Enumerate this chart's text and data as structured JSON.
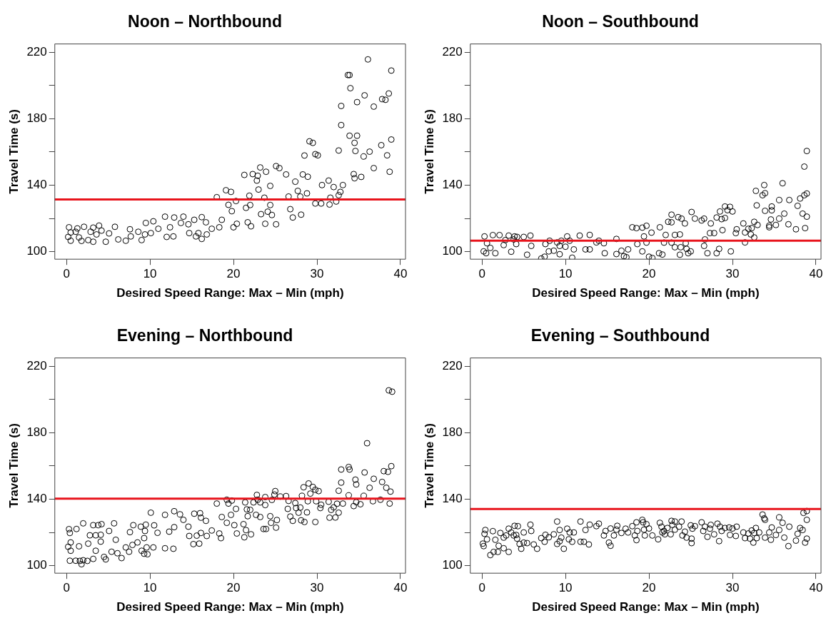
{
  "chart_data": [
    {
      "type": "scatter",
      "title": "Noon – Northbound",
      "xlabel": "Desired Speed Range: Max – Min (mph)",
      "ylabel": "Travel Time (s)",
      "xlim": [
        -1.4,
        40.6
      ],
      "ylim": [
        95.5,
        225
      ],
      "xticks": [
        0,
        10,
        20,
        30,
        40
      ],
      "yticks": [
        100,
        {
          "value": 120,
          "label": null
        },
        140,
        {
          "value": 160,
          "label": null
        },
        180,
        {
          "value": 200,
          "label": null
        },
        220
      ],
      "grid": false,
      "marker": "circle",
      "ref_lines": [
        {
          "axis": "y",
          "value": 131.4,
          "color": "#e8141c"
        }
      ],
      "series": [
        {
          "color": "#000000",
          "x": [
            0.2,
            0.3,
            0.5,
            0.5,
            1.1,
            1.3,
            1.5,
            1.8,
            2.1,
            2.6,
            2.9,
            3.2,
            3.2,
            3.6,
            3.9,
            4.2,
            4.7,
            5.1,
            5.8,
            6.2,
            7.1,
            7.6,
            7.7,
            8.6,
            9,
            9.4,
            9.5,
            10.1,
            10.4,
            11,
            11.8,
            12,
            12.4,
            12.8,
            12.9,
            13.7,
            14,
            14.6,
            14.7,
            15.3,
            15.5,
            15.8,
            16.2,
            16.2,
            16.7,
            16.8,
            17.4,
            18,
            18.3,
            18.6,
            19.1,
            19.4,
            19.7,
            19.8,
            20,
            20.3,
            20.4,
            21.3,
            21.5,
            21.7,
            21.9,
            22,
            22.1,
            22.3,
            22.8,
            22.9,
            23,
            23.2,
            23.3,
            23.7,
            23.8,
            23.9,
            24.1,
            24.4,
            24.4,
            24.6,
            25.1,
            25.1,
            25.5,
            26.3,
            26.6,
            26.8,
            27.1,
            27.4,
            27.7,
            28,
            28.1,
            28.3,
            28.5,
            28.8,
            28.9,
            29.1,
            29.5,
            29.8,
            29.8,
            30.1,
            30.5,
            30.6,
            31.4,
            31.5,
            31.6,
            32,
            32.3,
            32.6,
            32.6,
            32.8,
            32.9,
            32.9,
            33.1,
            33.7,
            33.9,
            33.9,
            34,
            34.4,
            34.5,
            34.5,
            34.6,
            34.8,
            34.8,
            35.3,
            35.6,
            35.7,
            36.1,
            36.3,
            36.8,
            36.8,
            37.7,
            37.8,
            38.2,
            38.4,
            38.6,
            38.7,
            38.9,
            38.9
          ],
          "values": [
            108.9,
            114.7,
            111.6,
            106.6,
            112,
            114,
            108.6,
            106.5,
            115,
            107,
            112,
            114.5,
            106,
            110.4,
            115.7,
            112.7,
            106,
            111,
            115,
            107.4,
            106.6,
            113.5,
            109.2,
            112,
            107,
            110.4,
            117.3,
            111.2,
            118.3,
            113.8,
            121.1,
            108.9,
            114.7,
            109.2,
            120.6,
            117.3,
            121.1,
            116.5,
            111.2,
            119.2,
            109.2,
            111.2,
            120.8,
            107.7,
            117.7,
            110.4,
            113.8,
            132.8,
            114.7,
            119.2,
            137,
            128.2,
            136,
            124.4,
            114.7,
            130.5,
            116.8,
            146.2,
            126.4,
            117.7,
            133.7,
            128.1,
            115.3,
            146.7,
            142.8,
            145.7,
            137.4,
            150.7,
            122.6,
            132.5,
            116.8,
            148.1,
            124.1,
            139.6,
            128.1,
            122.1,
            151.5,
            116.5,
            150.3,
            146.5,
            133.2,
            125.6,
            120.6,
            142.1,
            136.6,
            133.2,
            122.3,
            146.5,
            157.9,
            135.1,
            145.1,
            166.4,
            165.5,
            158.7,
            129,
            158,
            129,
            140.1,
            142.8,
            128.4,
            132.5,
            138.9,
            130.2,
            160.9,
            134,
            136,
            187.7,
            176.2,
            140.1,
            206.3,
            206.3,
            169.8,
            198.4,
            146.7,
            144.2,
            165.5,
            160.6,
            190,
            169.8,
            145,
            157.3,
            194.1,
            215.7,
            160.2,
            150.3,
            187.3,
            164.1,
            191.8,
            191.4,
            158,
            195.2,
            148.1,
            167.5,
            209
          ]
        }
      ]
    },
    {
      "type": "scatter",
      "title": "Noon – Southbound",
      "xlabel": "Desired Speed Range: Max – Min (mph)",
      "ylabel": "Travel Time (s)",
      "xlim": [
        -1.4,
        40.6
      ],
      "ylim": [
        95.5,
        225
      ],
      "xticks": [
        0,
        10,
        20,
        30,
        40
      ],
      "yticks": [
        100,
        {
          "value": 120,
          "label": null
        },
        140,
        {
          "value": 160,
          "label": null
        },
        180,
        {
          "value": 200,
          "label": null
        },
        220
      ],
      "grid": false,
      "marker": "circle",
      "ref_lines": [
        {
          "axis": "y",
          "value": 106.6,
          "color": "#e8141c"
        }
      ],
      "series": [
        {
          "color": "#000000",
          "x": [
            0.2,
            0.3,
            0.5,
            0.6,
            1,
            1.3,
            1.6,
            2.1,
            2.6,
            2.8,
            3.2,
            3.5,
            3.8,
            3.9,
            4.1,
            4.2,
            5,
            5.4,
            5.8,
            5.9,
            7.1,
            7.5,
            7.6,
            8,
            8.1,
            8.6,
            9,
            9.3,
            9.3,
            9.5,
            10,
            10.2,
            10.5,
            10.8,
            11,
            11.7,
            12.4,
            12.9,
            12.9,
            13.7,
            14,
            14.6,
            14.7,
            16.1,
            16.1,
            16.7,
            17,
            17.3,
            17.5,
            18,
            18.5,
            18.6,
            19.2,
            19.2,
            19.4,
            19.7,
            19.7,
            20,
            20.3,
            20.4,
            21.2,
            21.3,
            21.6,
            21.8,
            22,
            22.3,
            22.7,
            22.7,
            22.7,
            23.1,
            23.1,
            23.5,
            23.7,
            23.7,
            23.8,
            23.9,
            24.3,
            24.4,
            24.5,
            24.7,
            25,
            25.1,
            25.5,
            26.3,
            26.6,
            26.6,
            26.7,
            27,
            27.3,
            27.4,
            27.8,
            28.1,
            28.1,
            28.4,
            28.5,
            28.7,
            28.8,
            29.1,
            29.1,
            29.4,
            29.7,
            29.8,
            30,
            30.4,
            30.5,
            31.3,
            31.5,
            31.5,
            31.9,
            32.2,
            32.3,
            32.6,
            32.6,
            32.8,
            32.9,
            33,
            33.6,
            33.8,
            33.9,
            33.9,
            34.4,
            34.4,
            34.6,
            34.7,
            34.7,
            35.2,
            35.6,
            35.6,
            36,
            36.2,
            36.7,
            36.8,
            37.6,
            37.8,
            38.1,
            38.4,
            38.6,
            38.6,
            38.7,
            38.9,
            38.9,
            38.9
          ],
          "values": [
            100.2,
            109.2,
            99.1,
            105.1,
            102.3,
            110,
            99.1,
            110,
            104,
            107,
            109.7,
            100,
            107.4,
            109.2,
            104.6,
            108.9,
            108.9,
            98.2,
            109.7,
            103.5,
            95.9,
            97,
            104.6,
            100.2,
            106.6,
            100.6,
            105.6,
            98.5,
            103.5,
            106.6,
            103,
            109.2,
            106.6,
            96.4,
            101.4,
            109.7,
            101.4,
            101.4,
            110.1,
            105.6,
            106.6,
            105.1,
            99.1,
            98.6,
            107.7,
            100.6,
            97.3,
            96.7,
            101.4,
            114.7,
            114.2,
            104.6,
            114.5,
            100.2,
            109.2,
            105.5,
            115.6,
            97,
            111.5,
            96.2,
            99.1,
            114.7,
            98.3,
            105.5,
            110.1,
            118,
            117.7,
            122.3,
            105.5,
            110.1,
            102.7,
            120.8,
            98.2,
            110.4,
            102.7,
            119.9,
            117,
            105.1,
            101.7,
            99.1,
            100.2,
            123.9,
            119.9,
            118.8,
            119.9,
            103.5,
            107.4,
            99.1,
            111.2,
            117,
            111.2,
            120.6,
            99.1,
            101.7,
            124.2,
            119.6,
            113,
            127.2,
            120.3,
            125,
            127,
            100.2,
            124.2,
            111.2,
            113.5,
            117,
            105.6,
            111.6,
            113.8,
            110.4,
            114.2,
            118,
            108.6,
            136.6,
            127.9,
            116.1,
            134,
            140.1,
            135.2,
            124.6,
            115.7,
            114.7,
            119.4,
            124.9,
            127.2,
            116.1,
            119.9,
            131.1,
            141.2,
            122.9,
            116.5,
            131.1,
            113.5,
            127.6,
            132,
            122.9,
            151.2,
            134,
            114.2,
            121.1,
            135,
            160.6
          ]
        }
      ]
    },
    {
      "type": "scatter",
      "title": "Evening – Northbound",
      "xlabel": "Desired Speed Range: Max – Min (mph)",
      "ylabel": "Travel Time (s)",
      "xlim": [
        -1.4,
        40.6
      ],
      "ylim": [
        95.5,
        225
      ],
      "xticks": [
        0,
        10,
        20,
        30,
        40
      ],
      "yticks": [
        100,
        {
          "value": 120,
          "label": null
        },
        140,
        {
          "value": 160,
          "label": null
        },
        180,
        {
          "value": 200,
          "label": null
        },
        220
      ],
      "grid": false,
      "marker": "circle",
      "ref_lines": [
        {
          "axis": "y",
          "value": 140.3,
          "color": "#e8141c"
        }
      ],
      "series": [
        {
          "color": "#000000",
          "x": [
            0.2,
            0.3,
            0.4,
            0.4,
            0.5,
            0.5,
            1.1,
            1.2,
            1.5,
            1.6,
            1.8,
            2,
            2,
            2.5,
            2.6,
            2.8,
            3.2,
            3.2,
            3.5,
            3.5,
            3.8,
            4.1,
            4.1,
            4.2,
            4.5,
            4.7,
            5.1,
            5.4,
            5.7,
            5.9,
            6.1,
            6.6,
            7.1,
            7.5,
            7.6,
            7.9,
            8,
            8.5,
            8.9,
            9,
            9.3,
            9.3,
            9.4,
            9.5,
            9.6,
            9.7,
            10.1,
            10.4,
            10.5,
            10.9,
            11.8,
            11.8,
            12.3,
            12.8,
            12.9,
            12.9,
            13.6,
            14,
            14.6,
            14.7,
            15.2,
            15.3,
            15.6,
            15.9,
            16,
            16.1,
            16.1,
            16.7,
            16.8,
            17.4,
            18,
            18.3,
            18.5,
            18.6,
            19.2,
            19.2,
            19.4,
            19.7,
            19.8,
            20.1,
            20.3,
            20.4,
            21.2,
            21.3,
            21.4,
            21.5,
            21.6,
            21.7,
            22,
            22.1,
            22.4,
            22.7,
            22.8,
            22.9,
            23.2,
            23.2,
            23.6,
            23.8,
            23.8,
            23.9,
            24.4,
            24.5,
            24.6,
            24.9,
            25,
            25.1,
            25.2,
            25.6,
            26.3,
            26.5,
            26.6,
            26.8,
            27.1,
            27.4,
            27.5,
            27.8,
            28,
            28.1,
            28.2,
            28.4,
            28.5,
            28.8,
            28.9,
            29,
            29.2,
            29.5,
            29.8,
            29.8,
            29.9,
            30.2,
            30.4,
            30.5,
            31.4,
            31.5,
            31.7,
            32,
            32.2,
            32.4,
            32.6,
            32.6,
            32.9,
            32.9,
            33.1,
            33.8,
            33.8,
            33.9,
            34.4,
            34.6,
            34.7,
            34.7,
            35.2,
            35.6,
            35.7,
            36,
            36.3,
            36.7,
            36.8,
            37.6,
            37.8,
            38,
            38.3,
            38.5,
            38.6,
            38.7,
            38.8,
            38.9,
            39
          ],
          "values": [
            111.4,
            122,
            119.7,
            103,
            109,
            114,
            103,
            122.1,
            111.7,
            102.9,
            100.9,
            103.3,
            125.5,
            102.9,
            113.3,
            118.3,
            124.4,
            104.1,
            118.3,
            109,
            124.4,
            114.5,
            118.6,
            125,
            105.3,
            103.8,
            120.9,
            108.4,
            125.5,
            115.6,
            107.5,
            104.6,
            111,
            108.4,
            120.2,
            112.5,
            124.4,
            114,
            123.5,
            109,
            107.2,
            116.6,
            120.9,
            124.7,
            111,
            106.9,
            131.9,
            111,
            124.3,
            119.8,
            130.6,
            110.5,
            120.5,
            110.2,
            132.8,
            123.2,
            130.9,
            127.6,
            123.5,
            117.9,
            113,
            131.3,
            118.1,
            113.3,
            131.6,
            128.9,
            119.7,
            127,
            117.9,
            121.2,
            137.4,
            119.4,
            116.6,
            129.3,
            139.7,
            125.8,
            137.4,
            130.6,
            139.2,
            124.4,
            134.2,
            119.4,
            125,
            117.1,
            138.1,
            121.4,
            133.9,
            129.8,
            133.6,
            118.9,
            138.1,
            130.6,
            142.6,
            139.7,
            138.1,
            129.3,
            122.1,
            136.5,
            141.3,
            122.1,
            129.8,
            125.8,
            139.6,
            142.8,
            144.9,
            122.9,
            127.5,
            141.6,
            141.9,
            134.2,
            139,
            129.6,
            127,
            137.7,
            134.7,
            131.9,
            135,
            127.3,
            142,
            147.2,
            126.3,
            132.1,
            138.8,
            149.5,
            143.4,
            147.4,
            145.7,
            126.3,
            138.8,
            144.9,
            134.7,
            136.7,
            138.5,
            128.9,
            133.6,
            135.1,
            129,
            137.3,
            145.1,
            131.9,
            157.9,
            150,
            137.4,
            159.4,
            142.3,
            157.9,
            135.9,
            151.8,
            138.2,
            148.9,
            137,
            142,
            156.1,
            173.7,
            146.9,
            138.8,
            152.3,
            139.7,
            150.4,
            156.9,
            146.9,
            156.5,
            205.5,
            137.4,
            144.6,
            159.9,
            204.7
          ]
        }
      ]
    },
    {
      "type": "scatter",
      "title": "Evening – Southbound",
      "xlabel": "Desired Speed Range: Max – Min (mph)",
      "ylabel": "Travel Time (s)",
      "xlim": [
        -1.4,
        40.6
      ],
      "ylim": [
        95.5,
        225
      ],
      "xticks": [
        0,
        10,
        20,
        30,
        40
      ],
      "yticks": [
        100,
        {
          "value": 120,
          "label": null
        },
        140,
        {
          "value": 160,
          "label": null
        },
        180,
        {
          "value": 200,
          "label": null
        },
        220
      ],
      "grid": false,
      "marker": "circle",
      "ref_lines": [
        {
          "axis": "y",
          "value": 134.1,
          "color": "#e8141c"
        }
      ],
      "series": [
        {
          "color": "#000000",
          "x": [
            0.1,
            0.2,
            0.4,
            0.3,
            0.6,
            1,
            1.3,
            1.4,
            1.6,
            1.9,
            2,
            2.2,
            2.6,
            2.6,
            2.9,
            3.2,
            3.2,
            3.5,
            3.8,
            3.9,
            4.1,
            4.3,
            4.2,
            4.5,
            4.7,
            5,
            5,
            5.4,
            5.8,
            5.9,
            6.2,
            6.6,
            7.1,
            7.5,
            7.6,
            8,
            8.6,
            9,
            9,
            9.3,
            9.3,
            9.5,
            9.8,
            10.2,
            10.4,
            10.5,
            10.8,
            11,
            11.8,
            11.8,
            12.2,
            12.4,
            12.8,
            12.9,
            13.7,
            14,
            14.6,
            14.8,
            15.2,
            15.4,
            15.4,
            15.8,
            16.1,
            16.2,
            16.7,
            17.2,
            17.5,
            18,
            18.3,
            18.5,
            18.5,
            18.6,
            19.2,
            19.3,
            19.4,
            19.5,
            19.7,
            20,
            20.4,
            21.1,
            21.3,
            21.5,
            21.6,
            21.8,
            21.9,
            22.2,
            22.6,
            22.7,
            22.8,
            23.1,
            23.1,
            23.6,
            23.9,
            24,
            24.3,
            24.5,
            25,
            25.1,
            25.1,
            25.2,
            25.5,
            26.3,
            26.5,
            26.7,
            27,
            27.3,
            27.4,
            27.8,
            28.2,
            28.4,
            28.5,
            28.7,
            29.1,
            29.6,
            29.7,
            30,
            30.4,
            30.5,
            31.3,
            31.5,
            31.9,
            32.1,
            32.3,
            32.5,
            32.6,
            32.8,
            32.9,
            33.2,
            33.6,
            33.8,
            33.9,
            33.9,
            34.4,
            34.6,
            34.7,
            35.2,
            35.6,
            35.6,
            36,
            36.2,
            36.7,
            36.8,
            37.6,
            37.8,
            38.1,
            38.4,
            38.5,
            38.7,
            38.9,
            38.9,
            38.9
          ],
          "values": [
            113.3,
            111.8,
            121.5,
            119.2,
            115.9,
            106.4,
            120.8,
            108.3,
            115.6,
            108.3,
            112,
            119.7,
            110.5,
            116.9,
            118.2,
            108.3,
            122.3,
            120,
            118.2,
            124,
            118.5,
            123.8,
            116.3,
            113.1,
            110.2,
            113.9,
            120,
            113.6,
            124.7,
            120.9,
            112.8,
            110.2,
            116.6,
            114.4,
            118.6,
            117.1,
            118.9,
            126.6,
            113.1,
            114.7,
            121.5,
            116.9,
            110.2,
            122.3,
            115.9,
            120,
            114.4,
            120,
            126.6,
            114.4,
            114.4,
            121.5,
            112.8,
            124.7,
            123.8,
            125.3,
            118.2,
            120.9,
            113.9,
            122.4,
            112,
            118.2,
            121.7,
            124,
            119.7,
            122.3,
            120,
            123.8,
            118.2,
            115.4,
            126.1,
            120.9,
            127.6,
            126.1,
            121.7,
            118.2,
            125,
            122.4,
            118.2,
            115.9,
            125.8,
            123.5,
            120,
            120.9,
            118.9,
            122.7,
            118.9,
            127,
            124.6,
            126.6,
            121.7,
            123.5,
            126.6,
            118.2,
            120.5,
            116.9,
            124.3,
            116.3,
            113.6,
            122.3,
            123.8,
            126.1,
            120.9,
            123.5,
            117.4,
            122.3,
            124.6,
            118.9,
            125.3,
            114.8,
            123.5,
            120.9,
            122.7,
            123,
            118.5,
            122.4,
            117.9,
            123.5,
            120,
            116.6,
            119.4,
            116.3,
            121.2,
            113.9,
            119.7,
            122.7,
            116.6,
            120,
            130.8,
            128.5,
            116.9,
            127.6,
            120,
            115.6,
            123,
            118.5,
            129.1,
            121.5,
            125.8,
            116.9,
            111.8,
            123.5,
            115.1,
            119.2,
            122.7,
            121.5,
            131.8,
            113.9,
            116.3,
            127.6,
            132.9
          ]
        }
      ]
    }
  ]
}
